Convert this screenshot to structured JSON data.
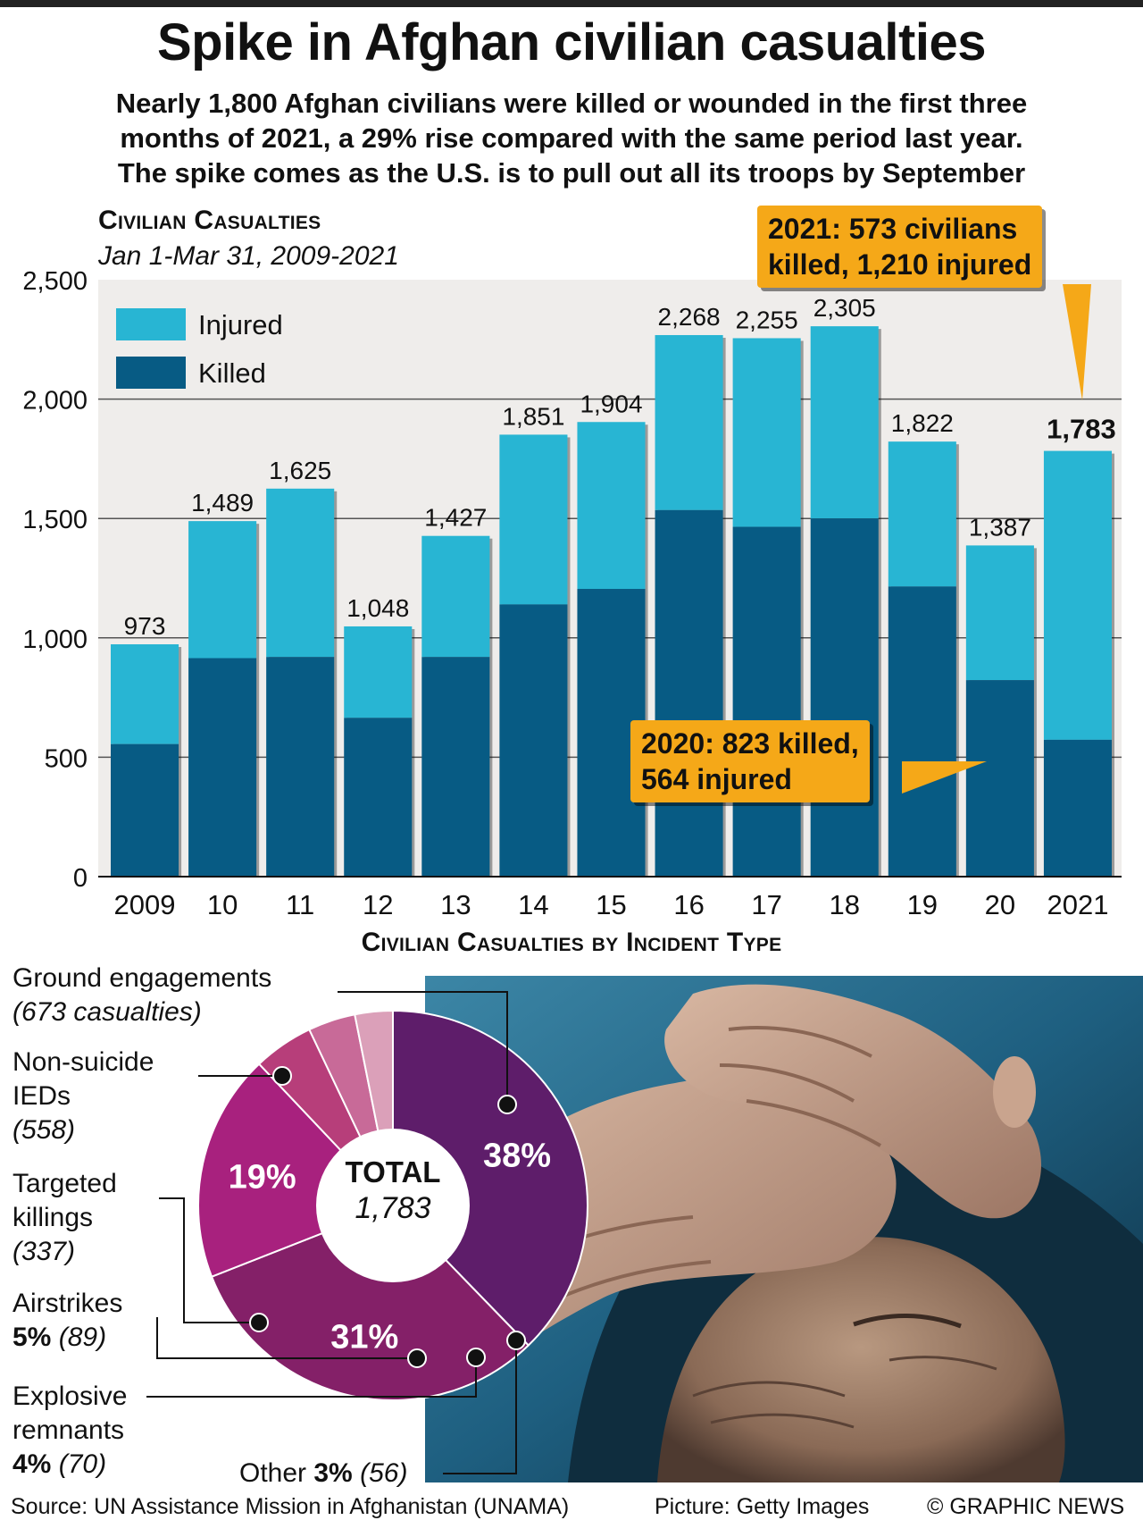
{
  "header": {
    "title": "Spike in Afghan civilian casualties",
    "subtitle_lines": [
      "Nearly 1,800 Afghan civilians were killed or wounded in the first three",
      "months of 2021, a 29% rise compared with the same period last year.",
      "The spike comes as the U.S. is to pull out all its troops by September"
    ]
  },
  "colors": {
    "injured": "#28b5d3",
    "killed": "#075b84",
    "callout": "#f5a818",
    "plot_bg": "#efedeb",
    "pie": [
      "#5e1d6a",
      "#842068",
      "#a8217e",
      "#b73e7a",
      "#c86a98",
      "#dba0b9"
    ]
  },
  "chart_data": [
    {
      "type": "bar",
      "stacked": true,
      "title": "Civilian Casualties",
      "subtitle": "Jan 1-Mar 31, 2009-2021",
      "categories": [
        "2009",
        "10",
        "11",
        "12",
        "13",
        "14",
        "15",
        "16",
        "17",
        "18",
        "19",
        "20",
        "2021"
      ],
      "totals": [
        973,
        1489,
        1625,
        1048,
        1427,
        1851,
        1904,
        2268,
        2255,
        2305,
        1822,
        1387,
        1783
      ],
      "total_labels": [
        "973",
        "1,489",
        "1,625",
        "1,048",
        "1,427",
        "1,851",
        "1,904",
        "2,268",
        "2,255",
        "2,305",
        "1,822",
        "1,387",
        "1,783"
      ],
      "series": [
        {
          "name": "Killed",
          "values": [
            555,
            915,
            920,
            665,
            920,
            1140,
            1205,
            1535,
            1465,
            1500,
            1215,
            823,
            573
          ]
        },
        {
          "name": "Injured",
          "values": [
            418,
            574,
            705,
            383,
            507,
            711,
            699,
            733,
            790,
            805,
            607,
            564,
            1210
          ]
        }
      ],
      "ylim": [
        0,
        2500
      ],
      "yticks": [
        0,
        500,
        1000,
        1500,
        2000,
        2500
      ],
      "ytick_labels": [
        "0",
        "500",
        "1,000",
        "1,500",
        "2,000",
        "2,500"
      ],
      "grid": true,
      "legend_position": "top-left",
      "annotations": [
        {
          "lines": [
            "2021: 573 civilians",
            "killed, 1,210 injured"
          ],
          "target": "2021"
        },
        {
          "lines": [
            "2020: 823 killed,",
            "564 injured"
          ],
          "target": "20"
        }
      ]
    },
    {
      "type": "pie",
      "donut": true,
      "title": "Civilian Casualties by Incident Type",
      "center_label": "TOTAL",
      "center_value": "1,783",
      "slices": [
        {
          "name": "Ground engagements",
          "value": 673,
          "percent_label": "38%"
        },
        {
          "name": "Non-suicide IEDs",
          "value": 558,
          "percent_label": "31%"
        },
        {
          "name": "Targeted killings",
          "value": 337,
          "percent_label": "19%"
        },
        {
          "name": "Airstrikes",
          "value": 89,
          "percent_label": "5%"
        },
        {
          "name": "Explosive remnants",
          "value": 70,
          "percent_label": "4%"
        },
        {
          "name": "Other",
          "value": 56,
          "percent_label": "3%"
        }
      ]
    }
  ],
  "pie_labels": {
    "ground": {
      "line1": "Ground engagements",
      "line2": "(673 casualties)"
    },
    "ieds": {
      "line1": "Non-suicide",
      "line2": "IEDs",
      "line3": "(558)"
    },
    "targeted": {
      "line1": "Targeted",
      "line2": "killings",
      "line3": "(337)"
    },
    "airstrikes": {
      "line1": "Airstrikes",
      "pct": "5%",
      "count": "(89)"
    },
    "explosive": {
      "line1": "Explosive",
      "line2": "remnants",
      "pct": "4%",
      "count": "(70)"
    },
    "other": {
      "name": "Other",
      "pct": "3%",
      "count": "(56)"
    }
  },
  "footer": {
    "source": "Source: UN Assistance Mission in Afghanistan (UNAMA)",
    "picture": "Picture: Getty Images",
    "credit": "© GRAPHIC NEWS"
  }
}
